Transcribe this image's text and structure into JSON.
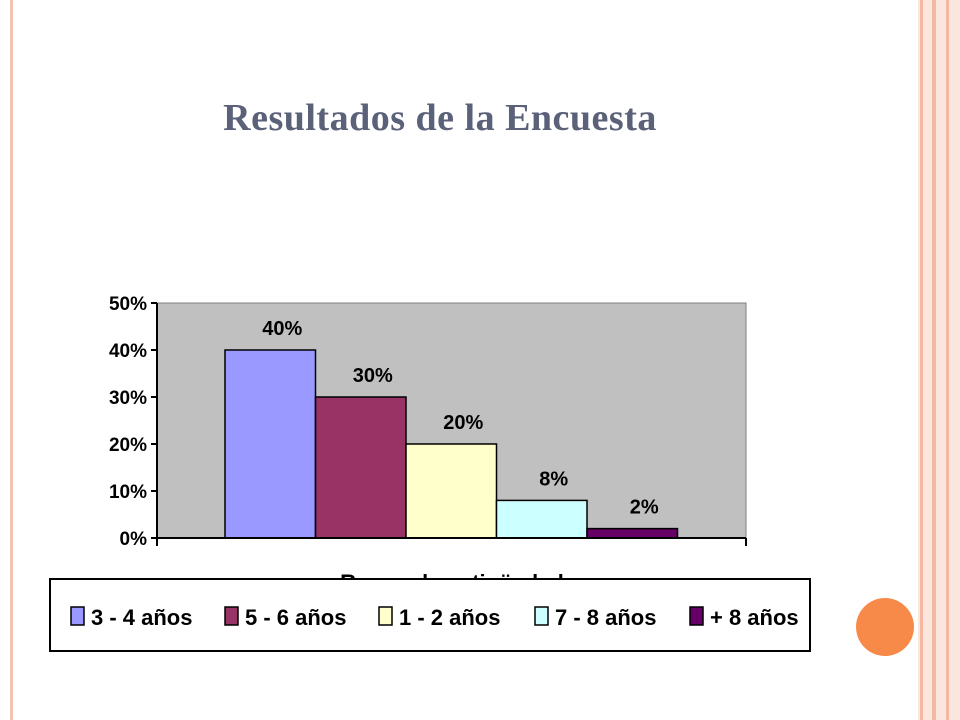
{
  "slide": {
    "title": "Resultados de la Encuesta"
  },
  "colors": {
    "plot_background": "#c0c0c0",
    "frame": "#f4b7a2",
    "accent_dot": "#f78a48",
    "title": "#5a6178"
  },
  "chart_data": {
    "type": "bar",
    "title": "",
    "xlabel": "Rango de antigüedad",
    "ylabel": "",
    "ylim": [
      0,
      50
    ],
    "y_ticks": [
      "0%",
      "10%",
      "20%",
      "30%",
      "40%",
      "50%"
    ],
    "grid": false,
    "legend_position": "bottom",
    "series": [
      {
        "name": "3 - 4 años",
        "value": 40,
        "label": "40%",
        "color": "#9999ff"
      },
      {
        "name": "5 - 6 años",
        "value": 30,
        "label": "30%",
        "color": "#993366"
      },
      {
        "name": "1 - 2 años",
        "value": 20,
        "label": "20%",
        "color": "#ffffcc"
      },
      {
        "name": "7 - 8 años",
        "value": 8,
        "label": "8%",
        "color": "#ccffff"
      },
      {
        "name": "+ 8 años",
        "value": 2,
        "label": "2%",
        "color": "#660066"
      }
    ]
  }
}
